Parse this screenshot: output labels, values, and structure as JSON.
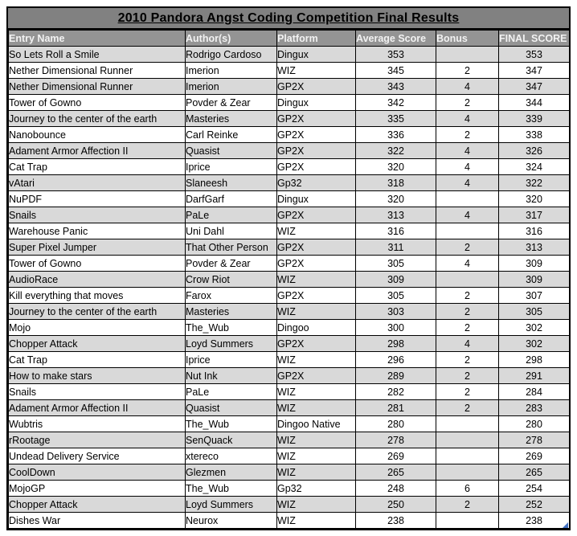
{
  "title": "2010 Pandora Angst Coding Competition Final Results",
  "columns": [
    "Entry Name",
    "Author(s)",
    "Platform",
    "Average Score",
    "Bonus",
    "FINAL SCORE"
  ],
  "rows": [
    [
      "So Lets Roll a Smile",
      "Rodrigo Cardoso",
      "Dingux",
      "353",
      "",
      "353"
    ],
    [
      "Nether Dimensional Runner",
      "Imerion",
      "WIZ",
      "345",
      "2",
      "347"
    ],
    [
      "Nether Dimensional Runner",
      "Imerion",
      "GP2X",
      "343",
      "4",
      "347"
    ],
    [
      "Tower of Gowno",
      "Povder & Zear",
      "Dingux",
      "342",
      "2",
      "344"
    ],
    [
      "Journey to the center of the earth",
      "Masteries",
      "GP2X",
      "335",
      "4",
      "339"
    ],
    [
      "Nanobounce",
      "Carl Reinke",
      "GP2X",
      "336",
      "2",
      "338"
    ],
    [
      "Adament Armor Affection II",
      "Quasist",
      "GP2X",
      "322",
      "4",
      "326"
    ],
    [
      "Cat Trap",
      "Iprice",
      "GP2X",
      "320",
      "4",
      "324"
    ],
    [
      "vAtari",
      "Slaneesh",
      "Gp32",
      "318",
      "4",
      "322"
    ],
    [
      "NuPDF",
      "DarfGarf",
      "Dingux",
      "320",
      "",
      "320"
    ],
    [
      "Snails",
      "PaLe",
      "GP2X",
      "313",
      "4",
      "317"
    ],
    [
      "Warehouse Panic",
      "Uni Dahl",
      "WIZ",
      "316",
      "",
      "316"
    ],
    [
      "Super Pixel Jumper",
      "That Other Person",
      "GP2X",
      "311",
      "2",
      "313"
    ],
    [
      "Tower of Gowno",
      "Povder & Zear",
      "GP2X",
      "305",
      "4",
      "309"
    ],
    [
      "AudioRace",
      "Crow Riot",
      "WIZ",
      "309",
      "",
      "309"
    ],
    [
      "Kill everything that moves",
      "Farox",
      "GP2X",
      "305",
      "2",
      "307"
    ],
    [
      "Journey to the center of the earth",
      "Masteries",
      "WIZ",
      "303",
      "2",
      "305"
    ],
    [
      "Mojo",
      "The_Wub",
      "Dingoo",
      "300",
      "2",
      "302"
    ],
    [
      "Chopper Attack",
      "Loyd Summers",
      "GP2X",
      "298",
      "4",
      "302"
    ],
    [
      "Cat Trap",
      "Iprice",
      "WIZ",
      "296",
      "2",
      "298"
    ],
    [
      "How to make stars",
      "Nut Ink",
      "GP2X",
      "289",
      "2",
      "291"
    ],
    [
      "Snails",
      "PaLe",
      "WIZ",
      "282",
      "2",
      "284"
    ],
    [
      "Adament Armor Affection II",
      "Quasist",
      "WIZ",
      "281",
      "2",
      "283"
    ],
    [
      "Wubtris",
      "The_Wub",
      "Dingoo Native",
      "280",
      "",
      "280"
    ],
    [
      "rRootage",
      "SenQuack",
      "WIZ",
      "278",
      "",
      "278"
    ],
    [
      "Undead Delivery Service",
      "xtereco",
      "WIZ",
      "269",
      "",
      "269"
    ],
    [
      "CoolDown",
      "Glezmen",
      "WIZ",
      "265",
      "",
      "265"
    ],
    [
      "MojoGP",
      "The_Wub",
      "Gp32",
      "248",
      "6",
      "254"
    ],
    [
      "Chopper Attack",
      "Loyd Summers",
      "WIZ",
      "250",
      "2",
      "252"
    ],
    [
      "Dishes War",
      "Neurox",
      "WIZ",
      "238",
      "",
      "238"
    ]
  ],
  "colors": {
    "title_bg": "#818181",
    "header_bg": "#949494",
    "header_text": "#F2F2F2",
    "row_alt_bg": "#D9D9D9",
    "row_bg": "#FFFFFF",
    "border": "#000000",
    "fill_handle": "#4472C4"
  },
  "icons": {
    "fill_handle": "selection-fill-handle-icon"
  }
}
